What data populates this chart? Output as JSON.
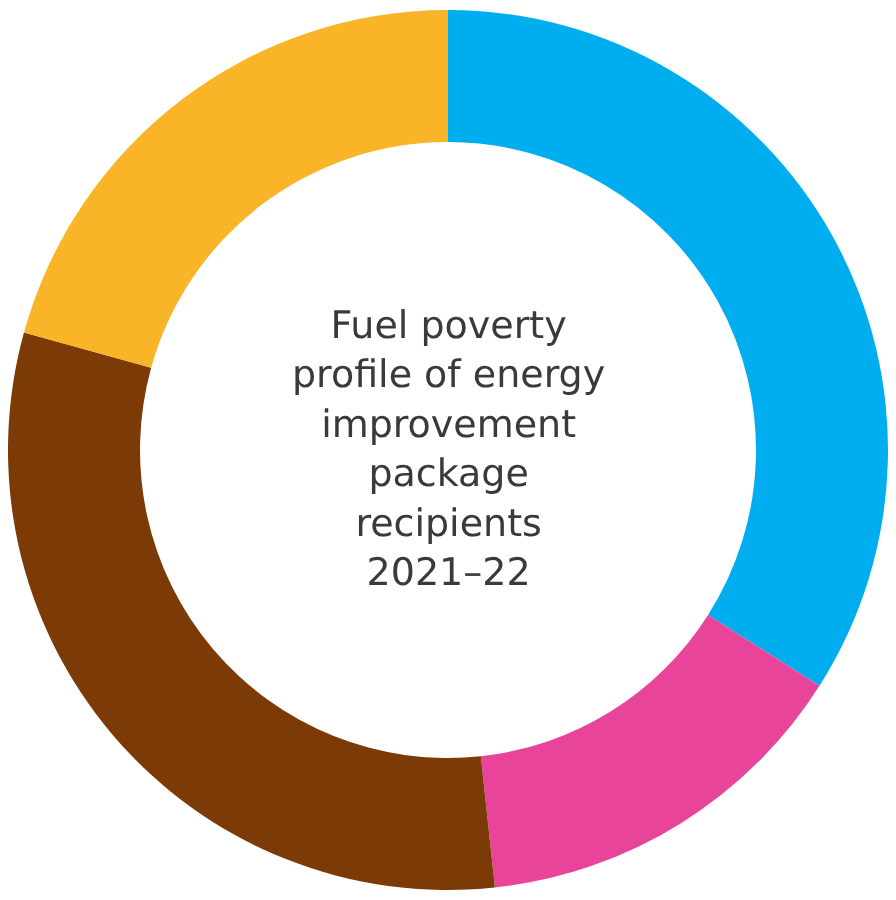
{
  "chart_data": {
    "type": "donut",
    "title": "Fuel poverty\nprofile of energy\nimprovement\npackage\nrecipients\n2021–22",
    "categories": [
      null,
      null,
      null,
      null
    ],
    "values": [
      34,
      14.3,
      31,
      20.7
    ],
    "colors": [
      "#00aeef",
      "#e8449a",
      "#7b3a06",
      "#f9b428"
    ]
  }
}
